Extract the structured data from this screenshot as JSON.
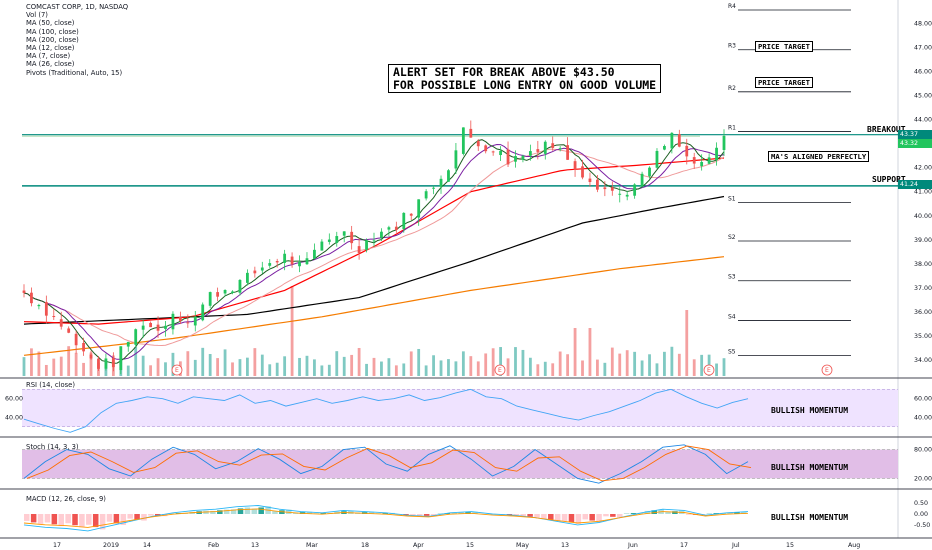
{
  "legend": {
    "title": "COMCAST CORP, 1D, NASDAQ",
    "lines": [
      "Vol (7)",
      "MA (50, close)",
      "MA (100, close)",
      "MA (200, close)",
      "MA (12, close)",
      "MA (7, close)",
      "MA (26, close)",
      "Pivots (Traditional, Auto, 15)"
    ]
  },
  "annotations": {
    "alert_line1": "ALERT SET FOR BREAK ABOVE $43.50",
    "alert_line2": "FOR POSSIBLE LONG ENTRY ON GOOD VOLUME",
    "price_target_1": "PRICE TARGET",
    "price_target_2": "PRICE TARGET",
    "ma_aligned": "MA'S ALIGNED PERFECTLY",
    "breakout": "BREAKOUT",
    "support": "SUPPORT",
    "rsi_note": "BULLISH MOMENTUM",
    "stoch_note": "BULLISH MOMENTUM",
    "macd_note": "BULLISH MOMENTUM"
  },
  "pivots": {
    "labels": [
      "R4",
      "R3",
      "R2",
      "R1",
      "S1",
      "S2",
      "S3",
      "S4",
      "S5"
    ],
    "values": [
      48.55,
      46.9,
      45.15,
      43.5,
      40.55,
      38.95,
      37.3,
      35.65,
      34.2
    ]
  },
  "earnings_marker": "E",
  "panes": {
    "rsi": "RSI (14, close)",
    "stoch": "Stoch (14, 3, 3)",
    "macd": "MACD (12, 26, close, 9)"
  },
  "price_tags": {
    "breakout": "43.37",
    "last": "43.32",
    "support": "41.24"
  },
  "colors": {
    "up": "#26a69a",
    "bull_candle": "#22c55e",
    "down": "#ef5350",
    "vol_up": "#7fc9c2",
    "vol_down": "#f4a0a0",
    "ma50": "#ff0000",
    "ma100": "#000000",
    "ma200": "#f57c00",
    "ma12": "#7b1fa2",
    "ma7": "#1b5e20",
    "ma26": "#ef9a9a",
    "breakout_line": "#00897b",
    "support_line": "#00897b",
    "rsi": "#42a5f5",
    "band_fill": "#efe3ff"
  },
  "chart_data": [
    {
      "type": "candlestick",
      "title": "COMCAST CORP, 1D, NASDAQ",
      "x_ticks": [
        "17",
        "2019",
        "14",
        "Feb",
        "13",
        "Mar",
        "18",
        "Apr",
        "15",
        "May",
        "13",
        "Jun",
        "17",
        "Jul",
        "15",
        "Aug"
      ],
      "y_ticks": [
        48.0,
        47.0,
        46.0,
        45.0,
        44.0,
        43.0,
        42.0,
        41.0,
        40.0,
        39.0,
        38.0,
        37.0,
        36.0,
        35.0,
        34.0
      ],
      "ylim": [
        33.3,
        48.8
      ],
      "breakout_level": 43.37,
      "support_level": 41.24,
      "last_price": 43.32,
      "close_path": [
        [
          0,
          36.8
        ],
        [
          5,
          36.2
        ],
        [
          10,
          35.5
        ],
        [
          15,
          34.4
        ],
        [
          20,
          33.8
        ],
        [
          24,
          33.9
        ],
        [
          28,
          34.8
        ],
        [
          32,
          35.6
        ],
        [
          36,
          35.2
        ],
        [
          40,
          36.0
        ],
        [
          45,
          35.6
        ],
        [
          50,
          36.7
        ],
        [
          55,
          37.0
        ],
        [
          60,
          37.4
        ],
        [
          65,
          38.0
        ],
        [
          70,
          38.3
        ],
        [
          75,
          37.8
        ],
        [
          80,
          38.9
        ],
        [
          85,
          39.4
        ],
        [
          90,
          38.7
        ],
        [
          95,
          39.3
        ],
        [
          100,
          39.6
        ],
        [
          105,
          40.4
        ],
        [
          110,
          41.3
        ],
        [
          115,
          42.3
        ],
        [
          118,
          43.5
        ],
        [
          122,
          43.0
        ],
        [
          126,
          42.8
        ],
        [
          130,
          42.3
        ],
        [
          135,
          42.6
        ],
        [
          140,
          43.1
        ],
        [
          145,
          42.6
        ],
        [
          150,
          41.8
        ],
        [
          155,
          41.2
        ],
        [
          160,
          40.9
        ],
        [
          165,
          41.3
        ],
        [
          170,
          42.5
        ],
        [
          174,
          43.3
        ],
        [
          178,
          42.4
        ],
        [
          182,
          42.0
        ],
        [
          186,
          42.7
        ],
        [
          188,
          43.32
        ]
      ],
      "ma_paths": {
        "ma50": [
          [
            0,
            35.6
          ],
          [
            20,
            35.5
          ],
          [
            45,
            35.8
          ],
          [
            70,
            36.9
          ],
          [
            95,
            38.8
          ],
          [
            120,
            41.0
          ],
          [
            145,
            41.9
          ],
          [
            165,
            42.1
          ],
          [
            188,
            42.4
          ]
        ],
        "ma100": [
          [
            0,
            35.5
          ],
          [
            30,
            35.7
          ],
          [
            60,
            35.9
          ],
          [
            90,
            36.6
          ],
          [
            120,
            38.1
          ],
          [
            150,
            39.7
          ],
          [
            170,
            40.3
          ],
          [
            188,
            40.8
          ]
        ],
        "ma200": [
          [
            0,
            34.2
          ],
          [
            40,
            34.9
          ],
          [
            80,
            35.8
          ],
          [
            120,
            36.9
          ],
          [
            160,
            37.8
          ],
          [
            188,
            38.3
          ]
        ]
      }
    },
    {
      "type": "line",
      "name": "RSI (14, close)",
      "y_ticks": [
        60.0,
        40.0
      ],
      "ylim": [
        20,
        80
      ],
      "band": [
        30,
        70
      ],
      "values": [
        38,
        33,
        28,
        24,
        30,
        45,
        55,
        58,
        62,
        60,
        55,
        62,
        60,
        58,
        64,
        55,
        58,
        52,
        56,
        60,
        55,
        58,
        62,
        58,
        60,
        64,
        58,
        61,
        66,
        70,
        62,
        60,
        52,
        48,
        44,
        40,
        37,
        42,
        46,
        52,
        58,
        66,
        70,
        62,
        55,
        50,
        56,
        60
      ]
    },
    {
      "type": "line",
      "name": "Stoch (14, 3, 3)",
      "y_ticks": [
        80.0,
        20.0
      ],
      "ylim": [
        0,
        100
      ],
      "band": [
        20,
        80
      ],
      "values": [
        20,
        55,
        80,
        70,
        40,
        25,
        60,
        85,
        70,
        40,
        55,
        82,
        60,
        30,
        45,
        80,
        85,
        50,
        35,
        70,
        88,
        60,
        25,
        45,
        80,
        50,
        20,
        10,
        30,
        55,
        85,
        90,
        70,
        30,
        55
      ]
    },
    {
      "type": "bar",
      "name": "MACD (12, 26, close, 9)",
      "y_ticks": [
        0.5,
        0.0,
        -0.5
      ],
      "ylim": [
        -1.0,
        1.0
      ],
      "values": [
        -0.45,
        -0.55,
        -0.6,
        -0.7,
        -0.5,
        -0.3,
        -0.1,
        0.05,
        0.15,
        0.2,
        0.3,
        0.35,
        0.2,
        0.1,
        0.05,
        0.15,
        0.1,
        0.05,
        -0.05,
        -0.1,
        0.05,
        0.1,
        0.0,
        -0.05,
        -0.15,
        -0.3,
        -0.45,
        -0.35,
        -0.15,
        0.05,
        0.2,
        0.15,
        -0.05,
        0.05,
        0.1
      ]
    }
  ]
}
